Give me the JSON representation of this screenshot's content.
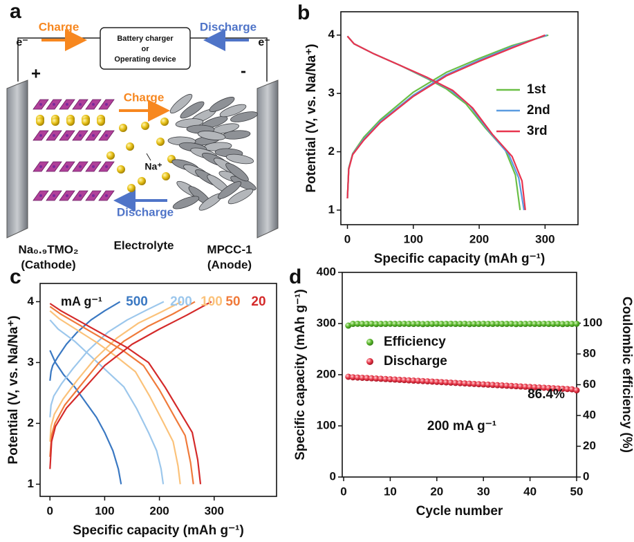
{
  "panel_labels": [
    "a",
    "b",
    "c",
    "d"
  ],
  "schematic": {
    "charge_top": "Charge",
    "discharge_top": "Discharge",
    "electron_left": "e⁻",
    "electron_right": "e⁻",
    "device": [
      "Battery charger",
      "or",
      "Operating device"
    ],
    "plus": "+",
    "minus": "-",
    "charge_mid": "Charge",
    "ion": "Na⁺",
    "discharge_mid": "Discharge",
    "cathode": [
      "Na₀.₉TMO₂",
      "(Cathode)"
    ],
    "electrolyte": "Electrolyte",
    "anode": [
      "MPCC-1",
      "(Anode)"
    ]
  },
  "chart_data": [
    {
      "type": "line",
      "x_label": "Specific capacity (mAh g⁻¹)",
      "y_label": "Potential (V, vs. Na/Na⁺)",
      "xlim": [
        -10,
        350
      ],
      "ylim": [
        0.75,
        4.4
      ],
      "xticks": [
        0,
        100,
        200,
        300
      ],
      "yticks": [
        1,
        2,
        3,
        4
      ],
      "legend": "right",
      "series": [
        {
          "name": "1st",
          "color": "#6abf45",
          "x": [
            0,
            2,
            8,
            25,
            50,
            100,
            150,
            200,
            250,
            305,
            null,
            0,
            10,
            40,
            80,
            120,
            150,
            180,
            210,
            240,
            255,
            262
          ],
          "values": [
            1.2,
            1.72,
            1.97,
            2.25,
            2.55,
            3.02,
            3.36,
            3.6,
            3.82,
            4.0,
            null,
            3.98,
            3.85,
            3.68,
            3.48,
            3.26,
            3.08,
            2.82,
            2.4,
            2.02,
            1.6,
            1.0
          ]
        },
        {
          "name": "2nd",
          "color": "#5a9be0",
          "x": [
            0,
            2,
            8,
            25,
            50,
            100,
            150,
            200,
            250,
            303,
            null,
            0,
            10,
            40,
            80,
            120,
            155,
            185,
            215,
            245,
            260,
            268
          ],
          "values": [
            1.2,
            1.71,
            1.96,
            2.22,
            2.52,
            2.97,
            3.32,
            3.57,
            3.8,
            4.0,
            null,
            3.98,
            3.85,
            3.68,
            3.48,
            3.27,
            3.07,
            2.8,
            2.35,
            1.95,
            1.55,
            1.0
          ]
        },
        {
          "name": "3rd",
          "color": "#e8344e",
          "x": [
            0,
            2,
            8,
            25,
            50,
            100,
            150,
            200,
            250,
            300,
            null,
            0,
            10,
            40,
            80,
            120,
            160,
            190,
            220,
            250,
            265,
            270
          ],
          "values": [
            1.2,
            1.7,
            1.95,
            2.2,
            2.5,
            2.95,
            3.3,
            3.55,
            3.78,
            4.0,
            null,
            3.98,
            3.85,
            3.68,
            3.48,
            3.28,
            3.05,
            2.75,
            2.3,
            1.92,
            1.5,
            1.0
          ]
        }
      ]
    },
    {
      "type": "line",
      "x_label": "Specific capacity (mAh g⁻¹)",
      "y_label": "Potential (V, vs. Na/Na⁺)",
      "xlim": [
        -18,
        414
      ],
      "ylim": [
        0.8,
        4.3
      ],
      "xticks": [
        0,
        100,
        200,
        300
      ],
      "yticks": [
        1,
        2,
        3,
        4
      ],
      "legend": "top",
      "legend_title": "mA g⁻¹",
      "series": [
        {
          "name": "500",
          "color": "#3a78c2",
          "x": [
            0,
            2,
            5,
            15,
            30,
            50,
            75,
            100,
            115,
            128,
            null,
            0,
            10,
            25,
            45,
            65,
            85,
            100,
            115,
            125,
            130
          ],
          "values": [
            2.7,
            2.85,
            2.95,
            3.1,
            3.3,
            3.5,
            3.7,
            3.85,
            3.93,
            4.0,
            null,
            3.2,
            3.0,
            2.8,
            2.6,
            2.35,
            2.1,
            1.85,
            1.55,
            1.25,
            1.0
          ]
        },
        {
          "name": "200",
          "color": "#9cc7ec",
          "x": [
            0,
            2,
            7,
            21,
            42,
            70,
            106,
            141,
            176,
            208,
            null,
            0,
            15,
            45,
            75,
            105,
            135,
            158,
            180,
            195,
            203,
            207
          ],
          "values": [
            2.1,
            2.3,
            2.45,
            2.65,
            2.9,
            3.2,
            3.5,
            3.7,
            3.86,
            4.0,
            null,
            3.7,
            3.55,
            3.35,
            3.1,
            2.85,
            2.6,
            2.25,
            1.85,
            1.55,
            1.25,
            1.0
          ]
        },
        {
          "name": "100",
          "color": "#fbc27a",
          "x": [
            0,
            2,
            8,
            24,
            49,
            81,
            122,
            162,
            203,
            240,
            null,
            0,
            17,
            52,
            87,
            121,
            156,
            182,
            208,
            225,
            234,
            238
          ],
          "values": [
            1.7,
            1.95,
            2.15,
            2.4,
            2.7,
            3.05,
            3.4,
            3.65,
            3.83,
            4.0,
            null,
            3.85,
            3.72,
            3.52,
            3.32,
            3.1,
            2.85,
            2.45,
            2.0,
            1.7,
            1.3,
            1.0
          ]
        },
        {
          "name": "50",
          "color": "#f07a3a",
          "x": [
            0,
            3,
            9,
            27,
            54,
            90,
            135,
            180,
            225,
            265,
            null,
            0,
            19,
            57,
            95,
            133,
            171,
            200,
            228,
            247,
            257,
            262
          ],
          "values": [
            1.45,
            1.8,
            2.0,
            2.3,
            2.6,
            3.0,
            3.35,
            3.6,
            3.8,
            4.0,
            null,
            3.92,
            3.8,
            3.6,
            3.4,
            3.2,
            2.95,
            2.55,
            2.1,
            1.8,
            1.35,
            1.0
          ]
        },
        {
          "name": "20",
          "color": "#d42a2a",
          "x": [
            0,
            3,
            10,
            30,
            60,
            100,
            150,
            200,
            250,
            295,
            null,
            0,
            20,
            60,
            100,
            140,
            180,
            210,
            240,
            260,
            270,
            275
          ],
          "values": [
            1.25,
            1.7,
            1.95,
            2.25,
            2.55,
            2.95,
            3.3,
            3.55,
            3.78,
            4.0,
            null,
            3.97,
            3.85,
            3.65,
            3.45,
            3.25,
            3.0,
            2.6,
            2.15,
            1.85,
            1.4,
            1.0
          ]
        }
      ]
    },
    {
      "type": "scatter",
      "x_label": "Cycle number",
      "y_label": "Specific capacity (mAh g⁻¹)",
      "y2_label": "Coulombic efficiency (%)",
      "xlim": [
        -0.3,
        50
      ],
      "ylim": [
        0,
        400
      ],
      "y2lim": [
        0,
        133
      ],
      "xticks": [
        0,
        10,
        20,
        30,
        40,
        50
      ],
      "yticks": [
        0,
        100,
        200,
        300,
        400
      ],
      "y2ticks": [
        0,
        20,
        40,
        60,
        80,
        100
      ],
      "legend": "left",
      "annotations": [
        "86.4%",
        "200 mA g⁻¹"
      ],
      "x": [
        1,
        2,
        3,
        4,
        5,
        6,
        7,
        8,
        9,
        10,
        11,
        12,
        13,
        14,
        15,
        16,
        17,
        18,
        19,
        20,
        21,
        22,
        23,
        24,
        25,
        26,
        27,
        28,
        29,
        30,
        31,
        32,
        33,
        34,
        35,
        36,
        37,
        38,
        39,
        40,
        41,
        42,
        43,
        44,
        45,
        46,
        47,
        48,
        49,
        50
      ],
      "series": [
        {
          "name": "Efficiency",
          "color": "#5cb82e",
          "axis": "y2",
          "values": [
            98.4,
            99.5,
            99.6,
            99.5,
            99.5,
            99.6,
            99.4,
            99.5,
            99.5,
            99.6,
            99.5,
            99.5,
            99.6,
            99.5,
            99.5,
            99.6,
            99.4,
            99.5,
            99.5,
            99.6,
            99.5,
            99.5,
            99.6,
            99.5,
            99.5,
            99.6,
            99.4,
            99.5,
            99.5,
            99.6,
            99.5,
            99.5,
            99.6,
            99.5,
            99.5,
            99.6,
            99.4,
            99.5,
            99.5,
            99.6,
            99.5,
            99.5,
            99.6,
            99.5,
            99.5,
            99.6,
            99.4,
            99.5,
            99.5,
            99.6
          ]
        },
        {
          "name": "Discharge",
          "color": "#e8394a",
          "values": [
            196,
            195,
            194.5,
            194,
            193.5,
            193,
            192.5,
            192,
            191.5,
            191,
            190.5,
            190,
            189.5,
            189,
            188.5,
            188,
            187.5,
            187,
            186.5,
            186,
            185.5,
            185,
            184.5,
            184,
            183.5,
            183,
            182.5,
            182,
            181.5,
            181,
            180.5,
            180,
            179.5,
            179,
            178.5,
            178,
            177.5,
            177,
            176.5,
            176,
            175.5,
            175,
            174.5,
            174,
            173.5,
            173,
            172.5,
            172,
            171.5,
            169.5
          ]
        }
      ]
    }
  ]
}
